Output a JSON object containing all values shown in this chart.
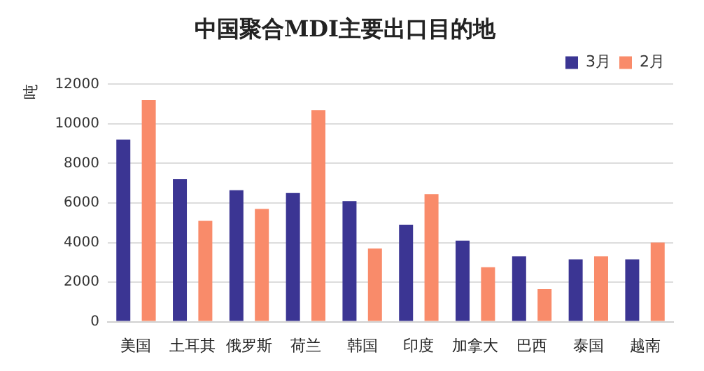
{
  "chart_data": {
    "type": "bar",
    "title": "中国聚合MDI主要出口目的地",
    "ylabel": "吨",
    "categories": [
      "美国",
      "土耳其",
      "俄罗斯",
      "荷兰",
      "韩国",
      "印度",
      "加拿大",
      "巴西",
      "泰国",
      "越南"
    ],
    "series": [
      {
        "name": "3月",
        "color": "#3b3593",
        "values": [
          9200,
          7200,
          6650,
          6500,
          6100,
          4900,
          4100,
          3300,
          3150,
          3150
        ]
      },
      {
        "name": "2月",
        "color": "#f98b6a",
        "values": [
          11200,
          5100,
          5700,
          10700,
          3700,
          6450,
          2750,
          1650,
          3300,
          4000
        ]
      }
    ],
    "ylim": [
      0,
      12000
    ],
    "yticks": [
      0,
      2000,
      4000,
      6000,
      8000,
      10000,
      12000
    ],
    "grid": "y",
    "legend": "top right"
  }
}
